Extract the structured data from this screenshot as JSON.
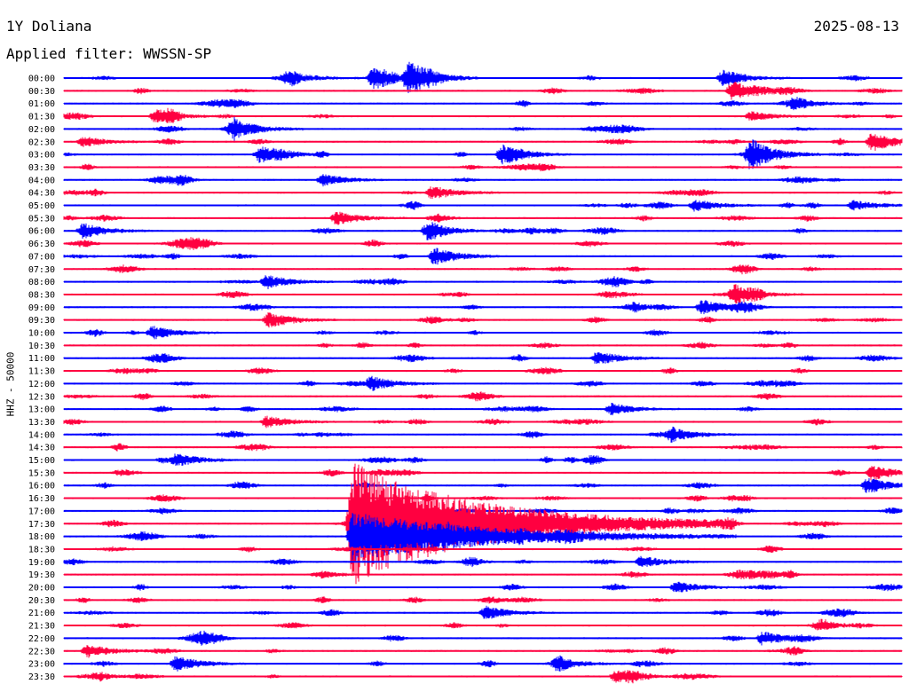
{
  "header": {
    "station": "1Y Doliana",
    "date": "2025-08-13",
    "filter": "Applied filter: WWSSN-SP"
  },
  "chart_data": {
    "type": "line",
    "subtype": "helicorder",
    "title": "1Y Doliana",
    "subtitle": "Applied filter: WWSSN-SP",
    "date": "2025-08-13",
    "ylabel": "HHZ - 50000",
    "xlabel": "",
    "grid": false,
    "legend": "none",
    "colors": {
      "even_rows": "#0000ff",
      "odd_rows": "#ff0040"
    },
    "row_minutes": 30,
    "rows": [
      "00:00",
      "00:30",
      "01:00",
      "01:30",
      "02:00",
      "02:30",
      "03:00",
      "03:30",
      "04:00",
      "04:30",
      "05:00",
      "05:30",
      "06:00",
      "06:30",
      "07:00",
      "07:30",
      "08:00",
      "08:30",
      "09:00",
      "09:30",
      "10:00",
      "10:30",
      "11:00",
      "11:30",
      "12:00",
      "12:30",
      "13:00",
      "13:30",
      "14:00",
      "14:30",
      "15:00",
      "15:30",
      "16:00",
      "16:30",
      "17:00",
      "17:30",
      "18:00",
      "18:30",
      "19:00",
      "19:30",
      "20:00",
      "20:30",
      "21:00",
      "21:30",
      "22:00",
      "22:30",
      "23:00",
      "23:30"
    ],
    "events": [
      {
        "row": "00:00",
        "minute": 13.3,
        "amplitude": 1.0
      },
      {
        "row": "00:00",
        "minute": 14.8,
        "amplitude": 1.6
      },
      {
        "row": "00:00",
        "minute": 9.7,
        "amplitude": 0.6
      },
      {
        "row": "00:00",
        "minute": 28.3,
        "amplitude": 0.7
      },
      {
        "row": "00:30",
        "minute": 28.7,
        "amplitude": 1.0
      },
      {
        "row": "01:00",
        "minute": 31.4,
        "amplitude": 0.5
      },
      {
        "row": "01:30",
        "minute": 3.9,
        "amplitude": 0.6
      },
      {
        "row": "01:30",
        "minute": 29.5,
        "amplitude": 0.5
      },
      {
        "row": "02:00",
        "minute": 7.3,
        "amplitude": 1.0
      },
      {
        "row": "02:30",
        "minute": 0.8,
        "amplitude": 0.5
      },
      {
        "row": "02:30",
        "minute": 34.7,
        "amplitude": 1.0
      },
      {
        "row": "03:00",
        "minute": 8.4,
        "amplitude": 0.8
      },
      {
        "row": "03:00",
        "minute": 18.8,
        "amplitude": 1.0
      },
      {
        "row": "03:00",
        "minute": 29.5,
        "amplitude": 1.6
      },
      {
        "row": "04:00",
        "minute": 11.1,
        "amplitude": 0.6
      },
      {
        "row": "04:30",
        "minute": 15.8,
        "amplitude": 0.7
      },
      {
        "row": "05:00",
        "minute": 27.1,
        "amplitude": 0.6
      },
      {
        "row": "05:00",
        "minute": 33.9,
        "amplitude": 0.5
      },
      {
        "row": "05:30",
        "minute": 11.7,
        "amplitude": 0.7
      },
      {
        "row": "06:00",
        "minute": 0.8,
        "amplitude": 0.8
      },
      {
        "row": "06:00",
        "minute": 15.6,
        "amplitude": 0.8
      },
      {
        "row": "07:00",
        "minute": 15.9,
        "amplitude": 0.9
      },
      {
        "row": "08:00",
        "minute": 8.7,
        "amplitude": 0.7
      },
      {
        "row": "08:30",
        "minute": 28.8,
        "amplitude": 0.8
      },
      {
        "row": "09:00",
        "minute": 27.4,
        "amplitude": 0.8
      },
      {
        "row": "09:30",
        "minute": 8.8,
        "amplitude": 0.8
      },
      {
        "row": "10:00",
        "minute": 3.8,
        "amplitude": 0.7
      },
      {
        "row": "11:00",
        "minute": 22.9,
        "amplitude": 0.7
      },
      {
        "row": "12:00",
        "minute": 13.2,
        "amplitude": 0.7
      },
      {
        "row": "13:00",
        "minute": 23.5,
        "amplitude": 0.6
      },
      {
        "row": "13:30",
        "minute": 8.7,
        "amplitude": 0.6
      },
      {
        "row": "14:00",
        "minute": 26.1,
        "amplitude": 0.7
      },
      {
        "row": "15:00",
        "minute": 4.8,
        "amplitude": 0.7
      },
      {
        "row": "15:30",
        "minute": 34.7,
        "amplitude": 0.8
      },
      {
        "row": "16:00",
        "minute": 34.5,
        "amplitude": 0.8
      },
      {
        "row": "17:00",
        "minute": 12.5,
        "amplitude": 1.0
      },
      {
        "row": "17:30",
        "minute": 12.4,
        "amplitude": 6.0
      },
      {
        "row": "18:00",
        "minute": 12.4,
        "amplitude": 2.5
      },
      {
        "row": "19:00",
        "minute": 24.8,
        "amplitude": 0.6
      },
      {
        "row": "20:00",
        "minute": 26.3,
        "amplitude": 0.6
      },
      {
        "row": "21:00",
        "minute": 18.1,
        "amplitude": 0.7
      },
      {
        "row": "22:00",
        "minute": 30.0,
        "amplitude": 0.7
      },
      {
        "row": "22:30",
        "minute": 1.0,
        "amplitude": 0.7
      },
      {
        "row": "23:00",
        "minute": 4.8,
        "amplitude": 0.8
      },
      {
        "row": "23:00",
        "minute": 21.2,
        "amplitude": 0.6
      },
      {
        "row": "23:30",
        "minute": 23.7,
        "amplitude": 0.6
      }
    ]
  }
}
